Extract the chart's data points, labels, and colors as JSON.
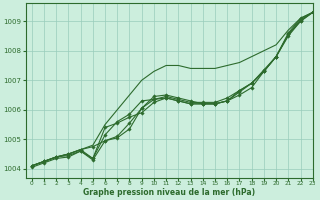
{
  "title": "Graphe pression niveau de la mer (hPa)",
  "background_color": "#cceedd",
  "grid_color": "#99ccbb",
  "line_color": "#2d6b2d",
  "xlim": [
    -0.5,
    23
  ],
  "ylim": [
    1003.7,
    1009.6
  ],
  "yticks": [
    1004,
    1005,
    1006,
    1007,
    1008,
    1009
  ],
  "xticks": [
    0,
    1,
    2,
    3,
    4,
    5,
    6,
    7,
    8,
    9,
    10,
    11,
    12,
    13,
    14,
    15,
    16,
    17,
    18,
    19,
    20,
    21,
    22,
    23
  ],
  "series": [
    [
      1004.1,
      1004.25,
      1004.4,
      1004.45,
      1004.6,
      1004.35,
      1005.15,
      1005.6,
      1005.85,
      1006.3,
      1006.35,
      1006.4,
      1006.3,
      1006.2,
      1006.2,
      1006.2,
      1006.3,
      1006.5,
      1006.75,
      1007.3,
      1007.8,
      1008.55,
      1009.05,
      1009.3
    ],
    [
      1004.1,
      1004.25,
      1004.4,
      1004.5,
      1004.65,
      1004.75,
      1004.95,
      1005.1,
      1005.55,
      1006.05,
      1006.35,
      1006.45,
      1006.35,
      1006.25,
      1006.25,
      1006.25,
      1006.4,
      1006.65,
      1006.9,
      1007.3,
      1007.8,
      1008.55,
      1009.0,
      1009.3
    ],
    [
      1004.1,
      1004.25,
      1004.4,
      1004.5,
      1004.65,
      1004.35,
      1005.4,
      1005.55,
      1005.75,
      1005.9,
      1006.25,
      1006.4,
      1006.3,
      1006.2,
      1006.2,
      1006.2,
      1006.3,
      1006.6,
      1006.9,
      1007.3,
      1007.8,
      1008.5,
      1009.0,
      1009.3
    ],
    [
      1004.05,
      1004.2,
      1004.35,
      1004.4,
      1004.6,
      1004.3,
      1004.95,
      1005.05,
      1005.35,
      1006.05,
      1006.45,
      1006.5,
      1006.4,
      1006.3,
      1006.2,
      1006.2,
      1006.3,
      1006.65,
      1006.9,
      1007.35,
      1007.8,
      1008.6,
      1009.1,
      1009.3
    ]
  ],
  "series_top": [
    1004.1,
    1004.25,
    1004.4,
    1004.5,
    1004.65,
    1004.8,
    1005.5,
    1006.0,
    1006.5,
    1007.0,
    1007.3,
    1007.5,
    1007.5,
    1007.4,
    1007.4,
    1007.4,
    1007.5,
    1007.6,
    1007.8,
    1008.0,
    1008.2,
    1008.7,
    1009.1,
    1009.3
  ]
}
